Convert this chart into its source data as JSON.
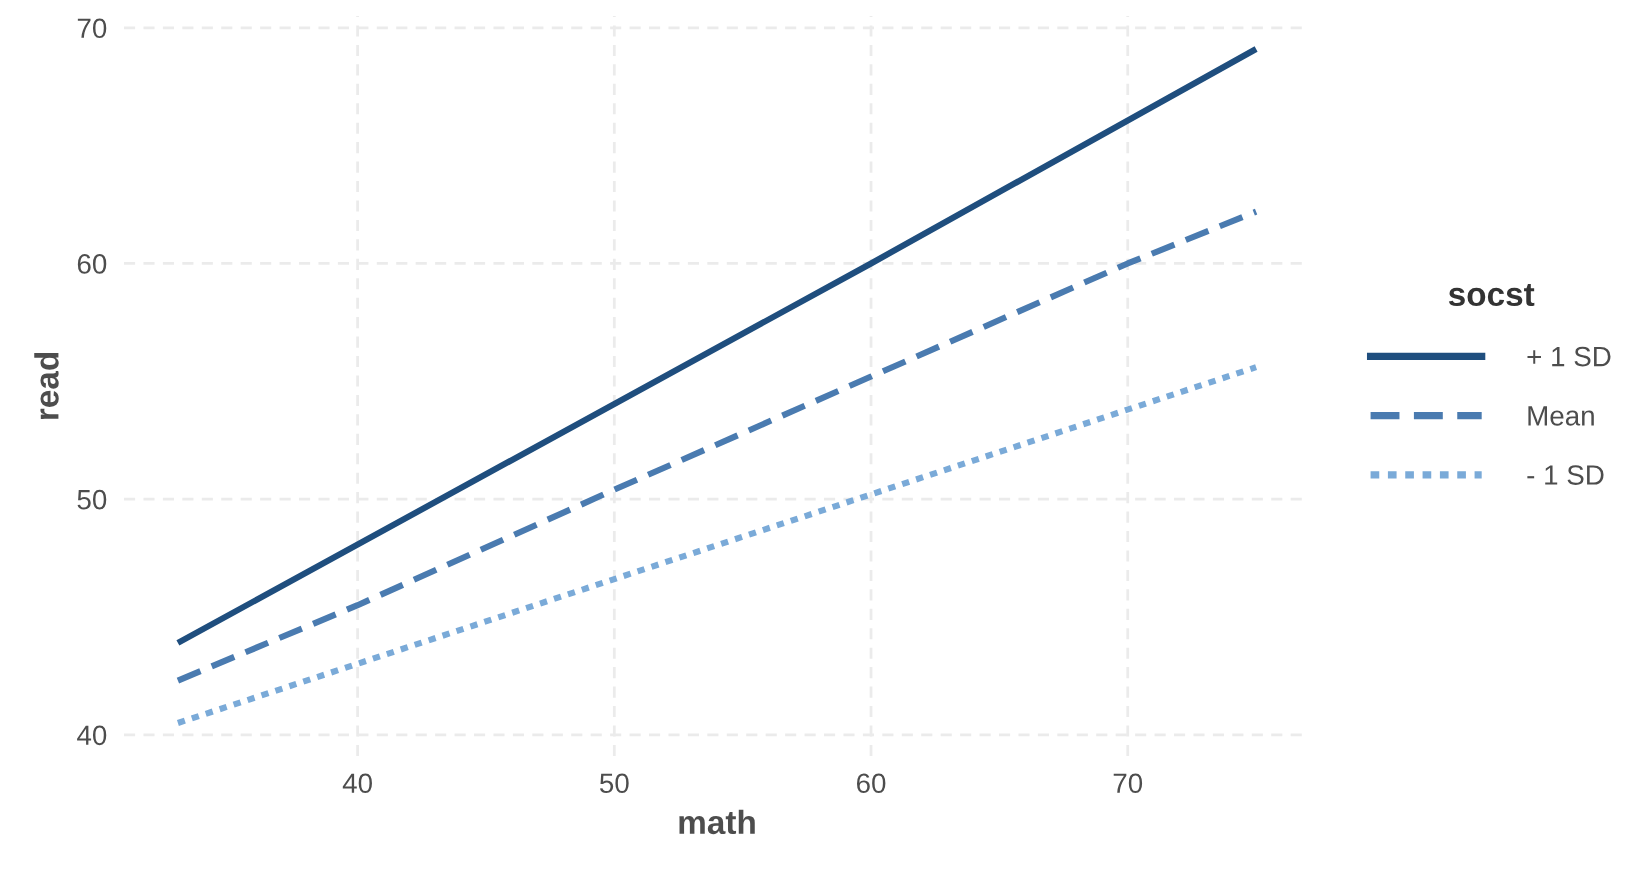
{
  "chart_data": {
    "type": "line",
    "xlabel": "math",
    "ylabel": "read",
    "legend_title": "socst",
    "xlim": [
      30.9,
      77.1
    ],
    "ylim": [
      39.1,
      70.5
    ],
    "xticks": [
      40,
      50,
      60,
      70
    ],
    "yticks": [
      40,
      50,
      60,
      70
    ],
    "grid": true,
    "legend": "right",
    "marker": "none",
    "series": [
      {
        "name": "+ 1 SD",
        "color": "#1f4e7e",
        "line_style": "solid",
        "x": [
          33,
          60,
          75
        ],
        "values": [
          43.9,
          60.0,
          69.1
        ]
      },
      {
        "name": "Mean",
        "color": "#4a7bb0",
        "line_style": "dashed",
        "x": [
          33,
          40,
          50,
          60,
          70,
          75
        ],
        "values": [
          42.3,
          45.5,
          50.4,
          55.2,
          60.0,
          62.2
        ]
      },
      {
        "name": "- 1 SD",
        "color": "#7aaad8",
        "line_style": "dotted",
        "x": [
          33,
          60,
          75
        ],
        "values": [
          40.5,
          50.2,
          55.6
        ]
      }
    ]
  }
}
